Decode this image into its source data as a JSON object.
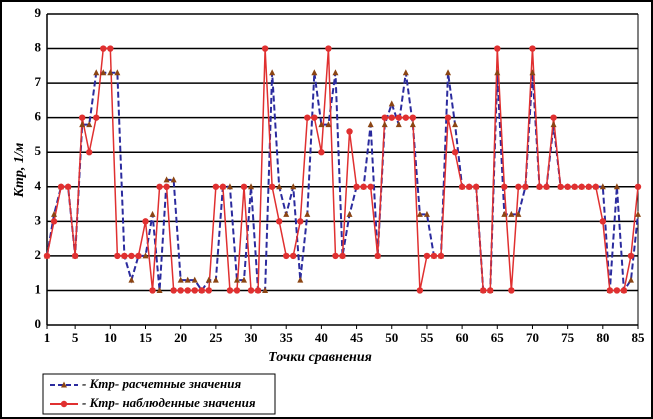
{
  "chart_data": {
    "type": "line",
    "y_label": "Kтр, 1/м",
    "x_label": "Точки сравнения",
    "x": [
      1,
      2,
      3,
      4,
      5,
      6,
      7,
      8,
      9,
      10,
      11,
      12,
      13,
      14,
      15,
      16,
      17,
      18,
      19,
      20,
      21,
      22,
      23,
      24,
      25,
      26,
      27,
      28,
      29,
      30,
      31,
      32,
      33,
      34,
      35,
      36,
      37,
      38,
      39,
      40,
      41,
      42,
      43,
      44,
      45,
      46,
      47,
      48,
      49,
      50,
      51,
      52,
      53,
      54,
      55,
      56,
      57,
      58,
      59,
      60,
      61,
      62,
      63,
      64,
      65,
      66,
      67,
      68,
      69,
      70,
      71,
      72,
      73,
      74,
      75,
      76,
      77,
      78,
      79,
      80,
      81,
      82,
      83,
      84,
      85
    ],
    "series": [
      {
        "name": "- Kтр- расчетные значения",
        "color": "#2b2b9e",
        "marker_color": "#8b4513",
        "values": [
          2,
          3.2,
          4,
          4,
          2,
          5.8,
          5.8,
          7.3,
          7.3,
          7.3,
          7.3,
          2,
          1.3,
          2,
          2,
          3.2,
          1,
          4.2,
          4.2,
          1.3,
          1.3,
          1.3,
          1,
          1.3,
          1.3,
          4,
          4,
          1.3,
          1.3,
          4,
          1,
          1,
          7.3,
          4,
          3.2,
          4,
          1.3,
          3.2,
          7.3,
          5.8,
          5.8,
          7.3,
          2,
          3.2,
          4,
          4,
          5.8,
          2,
          5.8,
          6.4,
          5.8,
          7.3,
          5.8,
          3.2,
          3.2,
          2,
          2,
          7.3,
          5.8,
          4,
          4,
          4,
          1,
          1,
          7.3,
          3.2,
          3.2,
          3.2,
          4,
          7.3,
          4,
          4,
          5.8,
          4,
          4,
          4,
          4,
          4,
          4,
          4,
          1,
          4,
          1,
          1.3,
          3.2
        ]
      },
      {
        "name": "- Kтр- наблюденные значения",
        "color": "#e03030",
        "marker_color": "#e03030",
        "values": [
          2,
          3,
          4,
          4,
          2,
          6,
          5,
          6,
          8,
          8,
          2,
          2,
          2,
          2,
          3,
          1,
          4,
          4,
          1,
          1,
          1,
          1,
          1,
          1,
          4,
          4,
          1,
          1,
          4,
          1,
          1,
          8,
          4,
          3,
          2,
          2,
          3,
          6,
          6,
          5,
          8,
          2,
          2,
          5.6,
          4,
          4,
          4,
          2,
          6,
          6,
          6,
          6,
          6,
          1,
          2,
          2,
          2,
          6,
          5,
          4,
          4,
          4,
          1,
          1,
          8,
          4,
          1,
          4,
          4,
          8,
          4,
          4,
          6,
          4,
          4,
          4,
          4,
          4,
          4,
          3,
          1,
          1,
          1,
          2,
          4
        ]
      }
    ],
    "xlim": [
      1,
      85
    ],
    "xticks": [
      1,
      5,
      10,
      15,
      20,
      25,
      30,
      35,
      40,
      45,
      50,
      55,
      60,
      65,
      70,
      75,
      80,
      85
    ],
    "ylim": [
      0,
      9
    ],
    "yticks": [
      0,
      1,
      2,
      3,
      4,
      5,
      6,
      7,
      8,
      9
    ],
    "grid": true
  }
}
